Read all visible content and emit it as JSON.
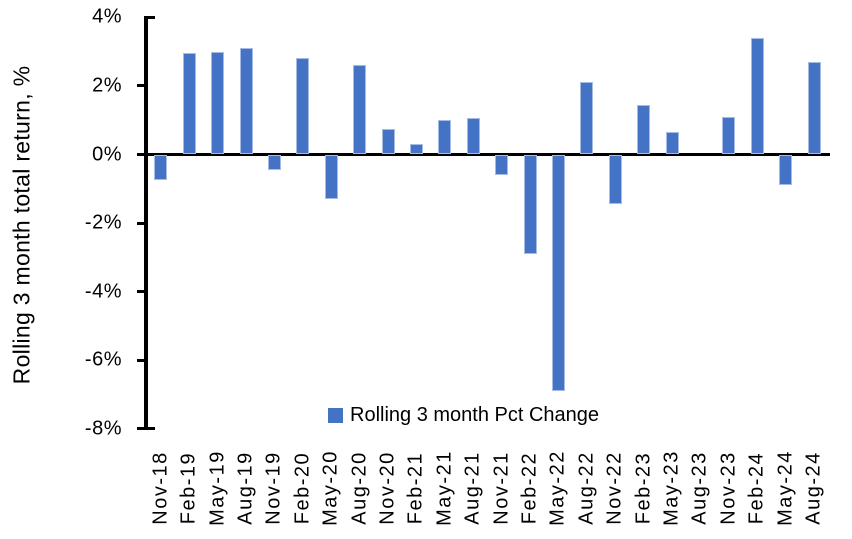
{
  "chart_data": {
    "type": "bar",
    "title": "",
    "xlabel": "",
    "ylabel": "Rolling 3 month total return, %",
    "series_name": "Rolling 3 month Pct Change",
    "categories": [
      "Nov-18",
      "Feb-19",
      "May-19",
      "Aug-19",
      "Nov-19",
      "Feb-20",
      "May-20",
      "Aug-20",
      "Nov-20",
      "Feb-21",
      "May-21",
      "Aug-21",
      "Nov-21",
      "Feb-22",
      "May-22",
      "Aug-22",
      "Nov-22",
      "Feb-23",
      "May-23",
      "Aug-23",
      "Nov-23",
      "Feb-24",
      "May-24",
      "Aug-24"
    ],
    "values": [
      -0.75,
      2.95,
      3.0,
      3.1,
      -0.45,
      2.8,
      -1.3,
      2.6,
      0.75,
      0.3,
      1.0,
      1.05,
      -0.6,
      -2.9,
      -6.9,
      2.1,
      -1.45,
      1.45,
      0.65,
      0,
      1.1,
      3.4,
      -0.9,
      2.7
    ],
    "y_ticks": [
      4,
      2,
      0,
      -2,
      -4,
      -6,
      -8
    ],
    "y_tick_labels": [
      "4%",
      "2%",
      "0%",
      "-2%",
      "-4%",
      "-6%",
      "-8%"
    ],
    "ylim": [
      -8,
      4
    ],
    "grid": false,
    "legend_position": "bottom-center-inside",
    "bar_color": "#4472C4",
    "bar_border_color": "#A7BCE5",
    "axis_color": "#000000",
    "text_color": "#000000"
  }
}
